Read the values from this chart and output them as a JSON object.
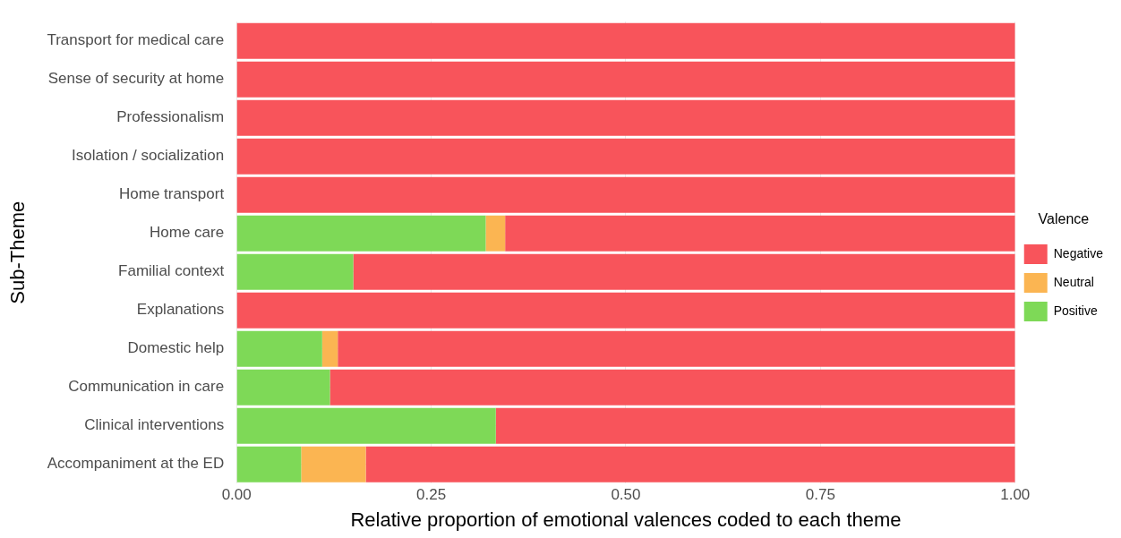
{
  "chart_data": {
    "type": "bar",
    "orientation": "horizontal",
    "stacked": true,
    "xlabel": "Relative proportion of emotional valences coded to each theme",
    "ylabel": "Sub-Theme",
    "legend_title": "Valence",
    "legend": "right",
    "grid": true,
    "categories": [
      "Transport for medical care",
      "Sense of security at home",
      "Professionalism",
      "Isolation / socialization",
      "Home transport",
      "Home care",
      "Familial context",
      "Explanations",
      "Domestic help",
      "Communication in care",
      "Clinical interventions",
      "Accompaniment at the ED"
    ],
    "series": [
      {
        "name": "Positive",
        "color": "#7ed957",
        "values": [
          0,
          0,
          0,
          0,
          0,
          0.32,
          0.15,
          0,
          0.11,
          0.12,
          0.333,
          0.083
        ]
      },
      {
        "name": "Neutral",
        "color": "#fbb552",
        "values": [
          0,
          0,
          0,
          0,
          0,
          0.025,
          0,
          0,
          0.02,
          0,
          0,
          0.083
        ]
      },
      {
        "name": "Negative",
        "color": "#f8545b",
        "values": [
          1,
          1,
          1,
          1,
          1,
          0.655,
          0.85,
          1,
          0.87,
          0.88,
          0.667,
          0.834
        ]
      }
    ],
    "xlim": [
      0,
      1
    ],
    "xticks": [
      {
        "value": 0,
        "label": "0.00"
      },
      {
        "value": 0.25,
        "label": "0.25"
      },
      {
        "value": 0.5,
        "label": "0.50"
      },
      {
        "value": 0.75,
        "label": "0.75"
      },
      {
        "value": 1,
        "label": "1.00"
      }
    ]
  }
}
